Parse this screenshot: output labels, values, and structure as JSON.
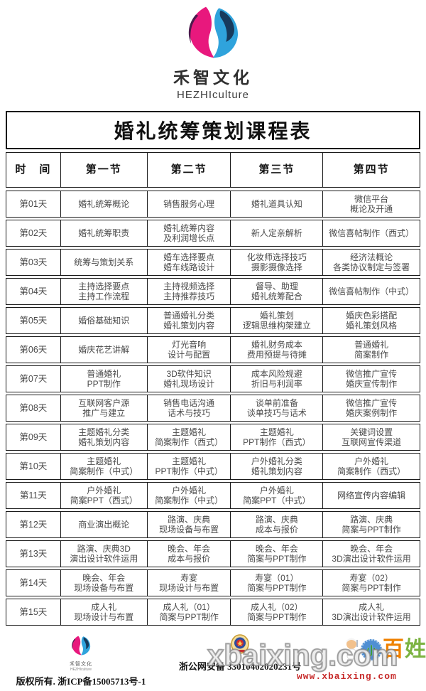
{
  "brand": {
    "name_cn": "禾智文化",
    "name_en": "HEZHIculture"
  },
  "table": {
    "title": "婚礼统筹策划课程表",
    "columns": [
      "时　间",
      "第一节",
      "第二节",
      "第三节",
      "第四节"
    ],
    "rows": [
      {
        "day": "第01天",
        "cells": [
          "婚礼统筹概论",
          "销售服务心理",
          "婚礼道具认知",
          "微信平台\n概论及开通"
        ]
      },
      {
        "day": "第02天",
        "cells": [
          "婚礼统筹职责",
          "婚礼统筹内容\n及利润增长点",
          "新人定亲解析",
          "微信喜帖制作（西式）"
        ]
      },
      {
        "day": "第03天",
        "cells": [
          "统筹与策划关系",
          "婚车选择要点\n婚车线路设计",
          "化妆师选择技巧\n摄影摄像选择",
          "经济法概论\n各类协议制定与签署"
        ]
      },
      {
        "day": "第04天",
        "cells": [
          "主持选择要点\n主持工作流程",
          "主持视频选择\n主持推荐技巧",
          "督导、助理\n婚礼统筹配合",
          "微信喜帖制作（中式）"
        ]
      },
      {
        "day": "第05天",
        "cells": [
          "婚俗基础知识",
          "普通婚礼分类\n婚礼策划内容",
          "婚礼策划\n逻辑思维构架建立",
          "婚庆色彩搭配\n婚礼策划风格"
        ]
      },
      {
        "day": "第06天",
        "cells": [
          "婚庆花艺讲解",
          "灯光音响\n设计与配置",
          "婚礼财务成本\n费用预提与待摊",
          "普通婚礼\n简案制作"
        ]
      },
      {
        "day": "第07天",
        "cells": [
          "普通婚礼\nPPT制作",
          "3D软件知识\n婚礼现场设计",
          "成本风险规避\n折旧与利润率",
          "微信推广宣传\n婚庆宣传制作"
        ]
      },
      {
        "day": "第08天",
        "cells": [
          "互联网客户源\n推广与建立",
          "销售电话沟通\n话术与技巧",
          "谈单前准备\n谈单技巧与话术",
          "微信推广宣传\n婚庆案例制作"
        ]
      },
      {
        "day": "第09天",
        "cells": [
          "主题婚礼分类\n婚礼策划内容",
          "主题婚礼\n简案制作（西式）",
          "主题婚礼\nPPT制作（西式）",
          "关键词设置\n互联网宣传渠道"
        ]
      },
      {
        "day": "第10天",
        "cells": [
          "主题婚礼\n简案制作（中式）",
          "主题婚礼\nPPT制作（中式）",
          "户外婚礼分类\n婚礼策划内容",
          "户外婚礼\n简案制作（西式）"
        ]
      },
      {
        "day": "第11天",
        "cells": [
          "户外婚礼\n简案PPT（西式）",
          "户外婚礼\n简案制作（中式）",
          "户外婚礼\n简案PPT（中式）",
          "网络宣传内容编辑"
        ]
      },
      {
        "day": "第12天",
        "cells": [
          "商业演出概论",
          "路演、庆典\n现场设备与布置",
          "路演、庆典\n成本与报价",
          "路演、庆典\n简案与PPT制作"
        ]
      },
      {
        "day": "第13天",
        "cells": [
          "路演、庆典3D\n演出设计软件运用",
          "晚会、年会\n成本与报价",
          "晚会、年会\n简案与PPT制作",
          "晚会、年会\n3D演出设计软件运用"
        ]
      },
      {
        "day": "第14天",
        "cells": [
          "晚会、年会\n现场设备与布置",
          "寿宴\n现场设计与布置",
          "寿宴（01）\n简案与PPT制作",
          "寿宴（02）\n简案与PPT制作"
        ]
      },
      {
        "day": "第15天",
        "cells": [
          "成人礼\n现场设计与布置",
          "成人礼（01）\n简案与PPT制作",
          "成人礼（02）\n简案与PPT制作",
          "成人礼\n3D演出设计软件运用"
        ]
      }
    ]
  },
  "footer": {
    "copyright": "版权所有. 浙ICP备15005713号-1",
    "police_record": "浙公网安备 33010402020231号",
    "watermark": "xbaixing.com",
    "watermark_url": "www.xbaixing.com",
    "site_chars": {
      "flower": "小",
      "orange": "百",
      "green": "姓"
    }
  },
  "colors": {
    "logo_pink": "#e8187d",
    "logo_purple": "#4d1a4d",
    "logo_blue": "#2fa3dc",
    "logo_navy": "#173a5c",
    "table_border": "#1a1a1a",
    "cell_text": "#4a4a4a",
    "watermark_gray": "#828282",
    "url_red": "#c62828",
    "mascot_orange": "#ef8200",
    "mascot_green": "#7cb342",
    "mascot_blue": "#4f8fd3",
    "badge_gold": "#d4a937",
    "badge_red": "#d42a2a"
  }
}
